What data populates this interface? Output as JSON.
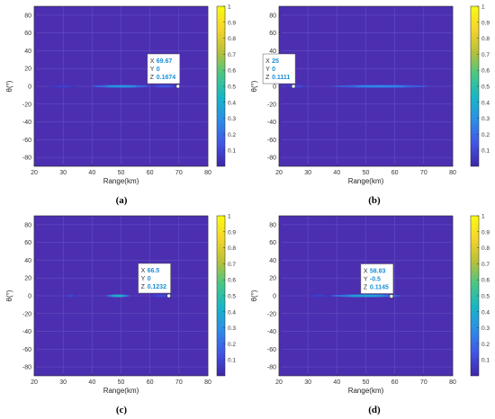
{
  "colors": {
    "background": "#4b2fb0",
    "grid": "#6a55c7",
    "tooltip_value": "#1a8fd6",
    "colormap": [
      "#3e26a8",
      "#4255e6",
      "#2c8de8",
      "#16b6c8",
      "#45c787",
      "#b8c138",
      "#f6d52a",
      "#f9fb0e"
    ]
  },
  "chart_data": [
    {
      "type": "heatmap",
      "caption": "(a)",
      "xlabel": "Range(km)",
      "ylabel": "θ(°)",
      "xlim": [
        20,
        80
      ],
      "ylim": [
        -90,
        90
      ],
      "xticks": [
        20,
        30,
        40,
        50,
        60,
        70,
        80
      ],
      "yticks": [
        80,
        60,
        40,
        20,
        0,
        -20,
        -40,
        -60,
        -80
      ],
      "colorbar": {
        "range": [
          0,
          1
        ],
        "ticks": [
          "1",
          "0.9",
          "0.8",
          "0.7",
          "0.6",
          "0.5",
          "0.4",
          "0.3",
          "0.2",
          "0.1"
        ]
      },
      "bands": [
        {
          "x_start": 25,
          "x_end": 35,
          "y": 0,
          "peak": 0.08
        },
        {
          "x_start": 40,
          "x_end": 60,
          "y": 0,
          "peak": 0.35
        },
        {
          "x_start": 60,
          "x_end": 70,
          "y": 0,
          "peak": 0.15
        }
      ],
      "datatip": {
        "x_label": "X",
        "x_value": "69.67",
        "y_label": "Y",
        "y_value": "0",
        "z_label": "Z",
        "z_value": "0.1674",
        "x": 69.67,
        "y": 0
      }
    },
    {
      "type": "heatmap",
      "caption": "(b)",
      "xlabel": "Range(km)",
      "ylabel": "θ(°)",
      "xlim": [
        20,
        80
      ],
      "ylim": [
        -90,
        90
      ],
      "xticks": [
        20,
        30,
        40,
        50,
        60,
        70,
        80
      ],
      "yticks": [
        80,
        60,
        40,
        20,
        0,
        -20,
        -40,
        -60,
        -80
      ],
      "colorbar": {
        "range": [
          0,
          1
        ],
        "ticks": [
          "1",
          "0.9",
          "0.8",
          "0.7",
          "0.6",
          "0.5",
          "0.4",
          "0.3",
          "0.2",
          "0.1"
        ]
      },
      "bands": [
        {
          "x_start": 22,
          "x_end": 30,
          "y": 0,
          "peak": 0.12
        },
        {
          "x_start": 38,
          "x_end": 72,
          "y": 0,
          "peak": 0.3
        }
      ],
      "datatip": {
        "x_label": "X",
        "x_value": "25",
        "y_label": "Y",
        "y_value": "0",
        "z_label": "Z",
        "z_value": "0.1111",
        "x": 25,
        "y": 0
      }
    },
    {
      "type": "heatmap",
      "caption": "(c)",
      "xlabel": "Range(km)",
      "ylabel": "θ(°)",
      "xlim": [
        20,
        80
      ],
      "ylim": [
        -90,
        90
      ],
      "xticks": [
        20,
        30,
        40,
        50,
        60,
        70,
        80
      ],
      "yticks": [
        80,
        60,
        40,
        20,
        0,
        -20,
        -40,
        -60,
        -80
      ],
      "colorbar": {
        "range": [
          0,
          1
        ],
        "ticks": [
          "1",
          "0.9",
          "0.8",
          "0.7",
          "0.6",
          "0.5",
          "0.4",
          "0.3",
          "0.2",
          "0.1"
        ]
      },
      "bands": [
        {
          "x_start": 30,
          "x_end": 35,
          "y": 0,
          "peak": 0.1
        },
        {
          "x_start": 45,
          "x_end": 53,
          "y": 0,
          "peak": 0.45
        },
        {
          "x_start": 60,
          "x_end": 68,
          "y": 0,
          "peak": 0.12
        }
      ],
      "datatip": {
        "x_label": "X",
        "x_value": "66.5",
        "y_label": "Y",
        "y_value": "0",
        "z_label": "Z",
        "z_value": "0.1232",
        "x": 66.5,
        "y": 0
      }
    },
    {
      "type": "heatmap",
      "caption": "(d)",
      "xlabel": "Range(km)",
      "ylabel": "θ(°)",
      "xlim": [
        20,
        80
      ],
      "ylim": [
        -90,
        90
      ],
      "xticks": [
        20,
        30,
        40,
        50,
        60,
        70,
        80
      ],
      "yticks": [
        80,
        60,
        40,
        20,
        0,
        -20,
        -40,
        -60,
        -80
      ],
      "colorbar": {
        "range": [
          0,
          1
        ],
        "ticks": [
          "1",
          "0.9",
          "0.8",
          "0.7",
          "0.6",
          "0.5",
          "0.4",
          "0.3",
          "0.2",
          "0.1"
        ]
      },
      "bands": [
        {
          "x_start": 38,
          "x_end": 62,
          "y": 0,
          "peak": 0.4
        },
        {
          "x_start": 30,
          "x_end": 38,
          "y": 0,
          "peak": 0.08
        }
      ],
      "datatip": {
        "x_label": "X",
        "x_value": "58.83",
        "y_label": "Y",
        "y_value": "-0.5",
        "z_label": "Z",
        "z_value": "0.1145",
        "x": 58.83,
        "y": -0.5
      }
    }
  ]
}
